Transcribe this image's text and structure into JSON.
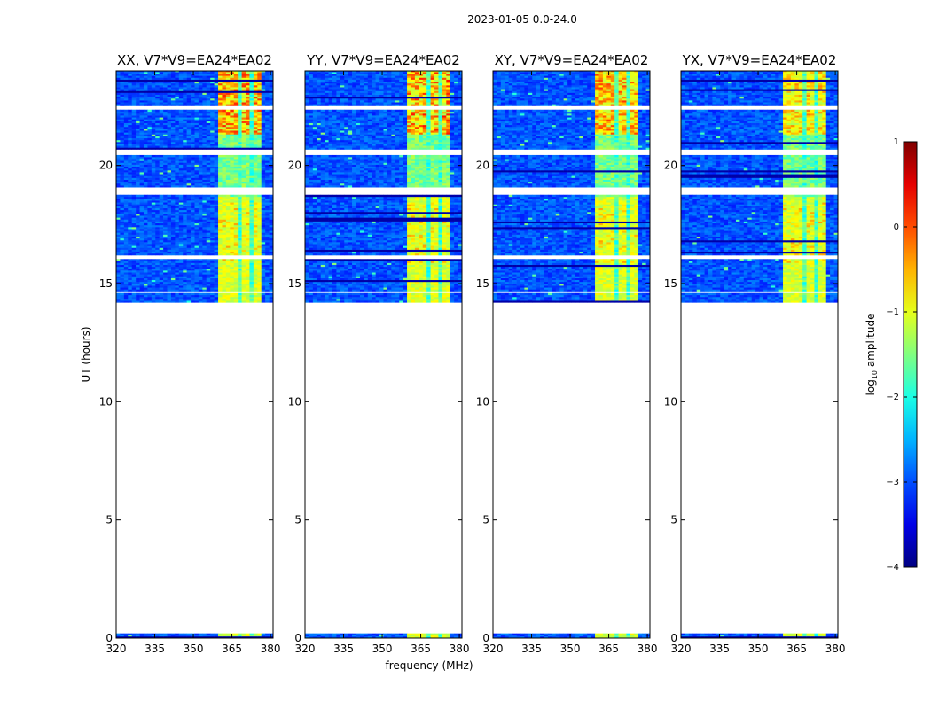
{
  "chart_data": {
    "type": "heatmap",
    "suptitle": "2023-01-05 0.0-24.0",
    "xlabel": "frequency (MHz)",
    "ylabel": "UT (hours)",
    "xlim": [
      320,
      381
    ],
    "ylim": [
      0,
      24
    ],
    "xticks": [
      320,
      335,
      350,
      365,
      380
    ],
    "yticks": [
      0,
      5,
      10,
      15,
      20
    ],
    "panels": [
      {
        "title": "XX, V7*V9=EA24*EA02",
        "signal_band_mhz": [
          359,
          377
        ],
        "peak_log_amp": 0.2
      },
      {
        "title": "YY, V7*V9=EA24*EA02",
        "signal_band_mhz": [
          359,
          377
        ],
        "peak_log_amp": 0.3
      },
      {
        "title": "XY, V7*V9=EA24*EA02",
        "signal_band_mhz": [
          359,
          377
        ],
        "peak_log_amp": 0.1
      },
      {
        "title": "YX, V7*V9=EA24*EA02",
        "signal_band_mhz": [
          359,
          377
        ],
        "peak_log_amp": -0.2
      }
    ],
    "data_time_ranges_hours": [
      [
        0.0,
        0.2
      ],
      [
        14.2,
        24.0
      ]
    ],
    "colorbar": {
      "label": "log10 amplitude",
      "label_main": "log",
      "label_sub": "10",
      "label_rest": " amplitude",
      "range": [
        -4,
        1
      ],
      "ticks": [
        "1",
        "0",
        "−1",
        "−2",
        "−3",
        "−4"
      ],
      "colormap": "jet"
    }
  }
}
